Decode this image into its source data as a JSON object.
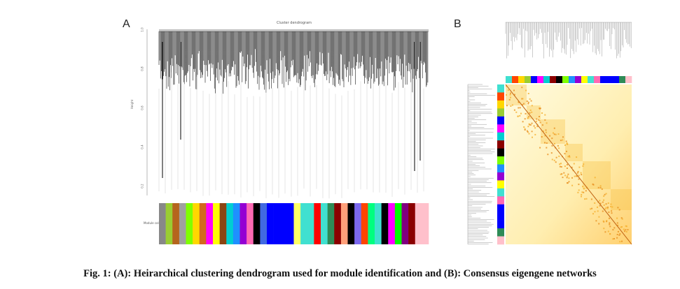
{
  "panel_a": {
    "label": "A",
    "title": "Cluster dendrogram",
    "ylabel": "Height",
    "ytick_labels": [
      "1.0",
      "0.8",
      "0.6",
      "0.4",
      "0.2"
    ],
    "color_bar_label": "Module colors",
    "module_colors": [
      "#888888",
      "#9acd32",
      "#b5651d",
      "#a0a0a0",
      "#7fff00",
      "#ffd700",
      "#d2691e",
      "#ff00ff",
      "#ffff00",
      "#8b4513",
      "#00ced1",
      "#1e90ff",
      "#9400d3",
      "#ff69b4",
      "#000000",
      "#4169e1",
      "#0000ff",
      "#0000ff",
      "#0000ff",
      "#0000ff",
      "#ffff66",
      "#40e0d0",
      "#40e0d0",
      "#ff0000",
      "#40e0d0",
      "#2e8b57",
      "#8b0000",
      "#ffa07a",
      "#000000",
      "#7b68ee",
      "#ff4500",
      "#00ff7f",
      "#40e0d0",
      "#000000",
      "#ff00ff",
      "#00ff00",
      "#800080",
      "#8b0000",
      "#ffc0cb",
      "#ffc0cb"
    ]
  },
  "panel_b": {
    "label": "B",
    "module_colors": [
      "#40e0d0",
      "#ff4500",
      "#ffd700",
      "#9acd32",
      "#0000ff",
      "#ff00ff",
      "#00ced1",
      "#8b0000",
      "#000000",
      "#7fff00",
      "#1e90ff",
      "#9400d3",
      "#ffff00",
      "#40e0d0",
      "#ff69b4",
      "#0000ff",
      "#0000ff",
      "#0000ff",
      "#2e8b57",
      "#ffc0cb"
    ]
  },
  "caption": "Fig. 1: (A): Heirarchical clustering dendrogram used for module identification and (B): Consensus eigengene networks"
}
